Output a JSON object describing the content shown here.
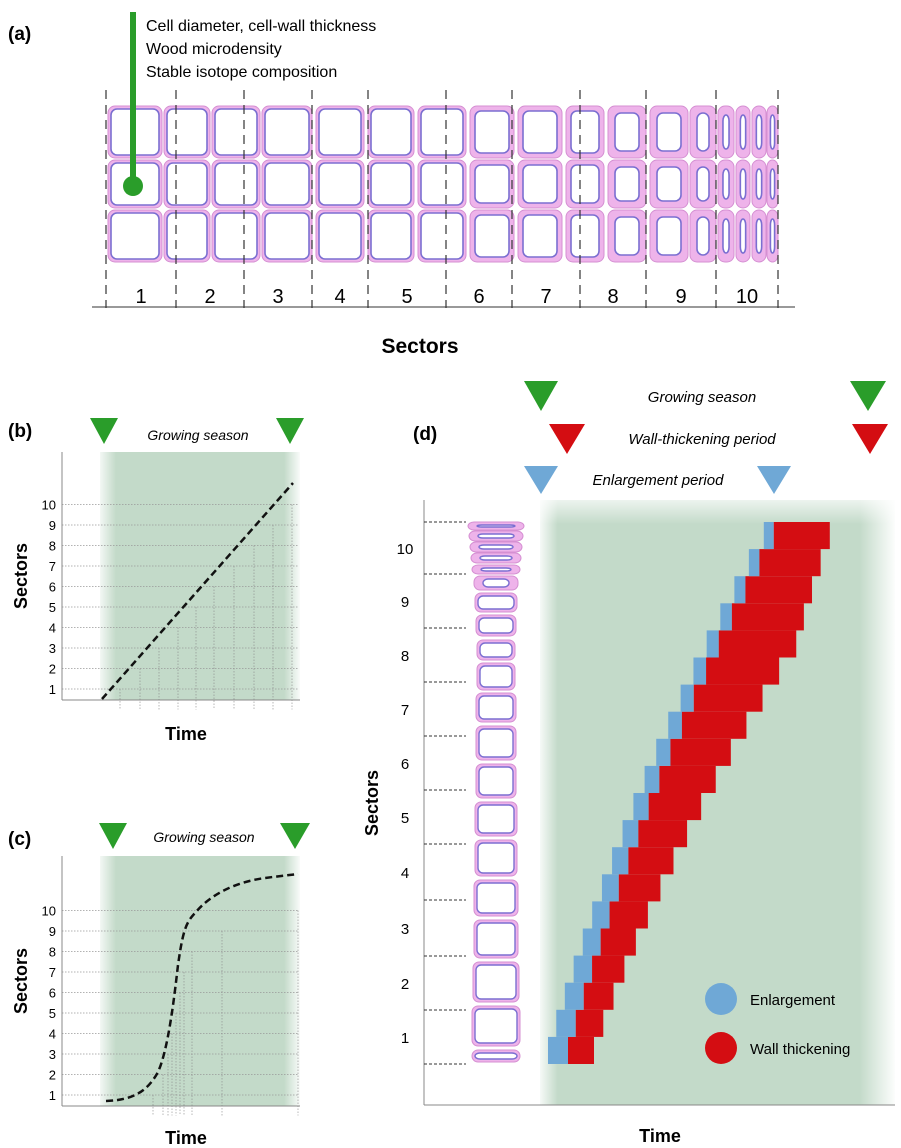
{
  "panel_a": {
    "label": "(a)",
    "measurements": [
      "Cell diameter, cell-wall thickness",
      "Wood microdensity",
      "Stable isotope composition"
    ],
    "sector_numbers": [
      "1",
      "2",
      "3",
      "4",
      "5",
      "6",
      "7",
      "8",
      "9",
      "10"
    ],
    "axis_title": "Sectors",
    "colors": {
      "marker": "#2ca02c",
      "cell_wall": "#e9a6e6",
      "cell_lumen_edge": "#7b6fd1"
    }
  },
  "panel_b": {
    "label": "(b)",
    "season_label": "Growing season",
    "ylabel": "Sectors",
    "xlabel": "Time",
    "yticks": [
      "1",
      "2",
      "3",
      "4",
      "5",
      "6",
      "7",
      "8",
      "9",
      "10"
    ],
    "curve": "linear"
  },
  "panel_c": {
    "label": "(c)",
    "season_label": "Growing season",
    "ylabel": "Sectors",
    "xlabel": "Time",
    "yticks": [
      "1",
      "2",
      "3",
      "4",
      "5",
      "6",
      "7",
      "8",
      "9",
      "10"
    ],
    "curve": "sigmoid"
  },
  "panel_d": {
    "label": "(d)",
    "growing_season_label": "Growing season",
    "wall_thickening_label": "Wall-thickening period",
    "enlargement_label": "Enlargement period",
    "ylabel": "Sectors",
    "xlabel": "Time",
    "yticks": [
      "1",
      "2",
      "3",
      "4",
      "5",
      "6",
      "7",
      "8",
      "9",
      "10"
    ],
    "legend": [
      {
        "label": "Enlargement",
        "color": "#6fa8d6"
      },
      {
        "label": "Wall thickening",
        "color": "#d40d12"
      }
    ]
  },
  "colors": {
    "green_marker": "#2a9d2a",
    "red_marker": "#d40d12",
    "blue_marker": "#6fa8d6",
    "season_band": "#c3dac9"
  }
}
